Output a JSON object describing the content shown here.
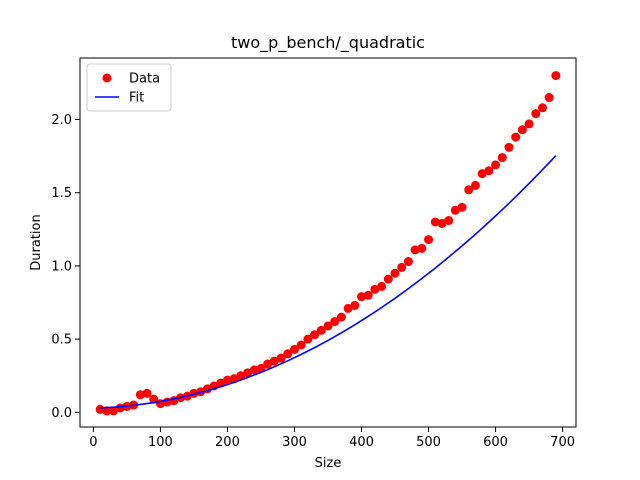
{
  "chart_data": {
    "type": "scatter",
    "title": "two_p_bench/_quadratic",
    "xlabel": "Size",
    "ylabel": "Duration",
    "xlim": [
      -20,
      720
    ],
    "ylim": [
      -0.1,
      2.42
    ],
    "xticks": [
      0,
      100,
      200,
      300,
      400,
      500,
      600,
      700
    ],
    "yticks": [
      0.0,
      0.5,
      1.0,
      1.5,
      2.0
    ],
    "xtick_labels": [
      "0",
      "100",
      "200",
      "300",
      "400",
      "500",
      "600",
      "700"
    ],
    "ytick_labels": [
      "0.0",
      "0.5",
      "1.0",
      "1.5",
      "2.0"
    ],
    "grid": false,
    "legend_position": "upper-left",
    "series": [
      {
        "name": "Data",
        "kind": "scatter",
        "color": "#ff0000",
        "points": [
          [
            10,
            0.02
          ],
          [
            20,
            0.01
          ],
          [
            30,
            0.01
          ],
          [
            40,
            0.03
          ],
          [
            50,
            0.04
          ],
          [
            60,
            0.05
          ],
          [
            70,
            0.12
          ],
          [
            80,
            0.13
          ],
          [
            90,
            0.09
          ],
          [
            100,
            0.06
          ],
          [
            110,
            0.07
          ],
          [
            120,
            0.08
          ],
          [
            130,
            0.1
          ],
          [
            140,
            0.11
          ],
          [
            150,
            0.13
          ],
          [
            160,
            0.14
          ],
          [
            170,
            0.16
          ],
          [
            180,
            0.18
          ],
          [
            190,
            0.2
          ],
          [
            200,
            0.22
          ],
          [
            210,
            0.23
          ],
          [
            220,
            0.25
          ],
          [
            230,
            0.27
          ],
          [
            240,
            0.29
          ],
          [
            250,
            0.3
          ],
          [
            260,
            0.33
          ],
          [
            270,
            0.35
          ],
          [
            280,
            0.37
          ],
          [
            290,
            0.4
          ],
          [
            300,
            0.43
          ],
          [
            310,
            0.46
          ],
          [
            320,
            0.5
          ],
          [
            330,
            0.53
          ],
          [
            340,
            0.56
          ],
          [
            350,
            0.59
          ],
          [
            360,
            0.62
          ],
          [
            370,
            0.65
          ],
          [
            380,
            0.71
          ],
          [
            390,
            0.73
          ],
          [
            400,
            0.79
          ],
          [
            410,
            0.8
          ],
          [
            420,
            0.84
          ],
          [
            430,
            0.86
          ],
          [
            440,
            0.91
          ],
          [
            450,
            0.95
          ],
          [
            460,
            0.99
          ],
          [
            470,
            1.03
          ],
          [
            480,
            1.11
          ],
          [
            490,
            1.12
          ],
          [
            500,
            1.18
          ],
          [
            510,
            1.3
          ],
          [
            520,
            1.29
          ],
          [
            530,
            1.31
          ],
          [
            540,
            1.38
          ],
          [
            550,
            1.4
          ],
          [
            560,
            1.52
          ],
          [
            570,
            1.55
          ],
          [
            580,
            1.63
          ],
          [
            590,
            1.65
          ],
          [
            600,
            1.69
          ],
          [
            610,
            1.74
          ],
          [
            620,
            1.81
          ],
          [
            630,
            1.88
          ],
          [
            640,
            1.93
          ],
          [
            650,
            1.97
          ],
          [
            660,
            2.04
          ],
          [
            670,
            2.08
          ],
          [
            680,
            2.15
          ],
          [
            690,
            2.3
          ]
        ]
      },
      {
        "name": "Fit",
        "kind": "line",
        "color": "#0000ff",
        "x": [
          10,
          30,
          50,
          70,
          90,
          110,
          130,
          150,
          170,
          190,
          210,
          230,
          250,
          270,
          290,
          310,
          330,
          350,
          370,
          390,
          410,
          430,
          450,
          470,
          490,
          510,
          530,
          550,
          570,
          590,
          610,
          630,
          650,
          670,
          690
        ],
        "y": [
          0.03,
          0.035,
          0.043,
          0.054,
          0.067,
          0.083,
          0.102,
          0.124,
          0.148,
          0.175,
          0.205,
          0.238,
          0.273,
          0.311,
          0.352,
          0.396,
          0.442,
          0.491,
          0.543,
          0.598,
          0.656,
          0.716,
          0.779,
          0.845,
          0.914,
          0.985,
          1.06,
          1.137,
          1.216,
          1.299,
          1.384,
          1.472,
          1.563,
          1.657,
          1.753
        ]
      }
    ]
  }
}
